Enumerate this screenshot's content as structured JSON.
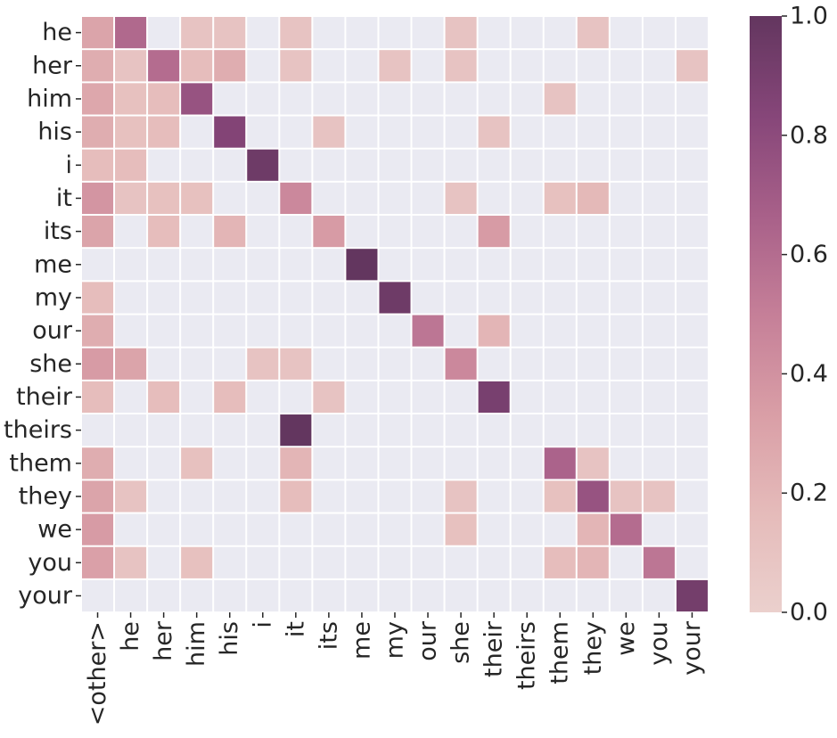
{
  "chart_data": {
    "type": "heatmap",
    "title": "",
    "xlabel": "",
    "ylabel": "",
    "y_labels": [
      "he",
      "her",
      "him",
      "his",
      "i",
      "it",
      "its",
      "me",
      "my",
      "our",
      "she",
      "their",
      "theirs",
      "them",
      "they",
      "we",
      "you",
      "your"
    ],
    "x_labels": [
      "<other>",
      "he",
      "her",
      "him",
      "his",
      "i",
      "it",
      "its",
      "me",
      "my",
      "our",
      "she",
      "their",
      "theirs",
      "them",
      "they",
      "we",
      "you",
      "your"
    ],
    "values": [
      [
        0.3,
        0.62,
        null,
        0.1,
        0.1,
        null,
        0.1,
        null,
        null,
        null,
        null,
        0.1,
        null,
        null,
        null,
        0.1,
        null,
        null,
        null
      ],
      [
        0.25,
        0.1,
        0.6,
        0.15,
        0.25,
        null,
        0.1,
        null,
        null,
        0.1,
        null,
        0.1,
        null,
        null,
        null,
        null,
        null,
        null,
        0.1
      ],
      [
        0.28,
        0.12,
        0.15,
        0.75,
        null,
        null,
        null,
        null,
        null,
        null,
        null,
        null,
        null,
        null,
        0.1,
        null,
        null,
        null,
        null
      ],
      [
        0.25,
        0.12,
        0.15,
        null,
        0.85,
        null,
        null,
        0.1,
        null,
        null,
        null,
        null,
        0.1,
        null,
        null,
        null,
        null,
        null,
        null
      ],
      [
        0.15,
        0.15,
        null,
        null,
        null,
        0.95,
        null,
        null,
        null,
        null,
        null,
        null,
        null,
        null,
        null,
        null,
        null,
        null,
        null
      ],
      [
        0.38,
        0.1,
        0.12,
        0.12,
        null,
        null,
        0.45,
        null,
        null,
        null,
        null,
        0.1,
        null,
        null,
        0.12,
        0.18,
        null,
        null,
        null
      ],
      [
        0.3,
        null,
        0.15,
        null,
        0.2,
        null,
        null,
        0.35,
        null,
        null,
        null,
        null,
        0.35,
        null,
        null,
        null,
        null,
        null,
        null
      ],
      [
        null,
        null,
        null,
        null,
        null,
        null,
        null,
        null,
        1.0,
        null,
        null,
        null,
        null,
        null,
        null,
        null,
        null,
        null,
        null
      ],
      [
        0.15,
        null,
        null,
        null,
        null,
        null,
        null,
        null,
        null,
        0.95,
        null,
        null,
        null,
        null,
        null,
        null,
        null,
        null,
        null
      ],
      [
        0.25,
        null,
        null,
        null,
        null,
        null,
        null,
        null,
        null,
        null,
        0.55,
        null,
        0.2,
        null,
        null,
        null,
        null,
        null,
        null
      ],
      [
        0.35,
        0.3,
        null,
        null,
        null,
        0.1,
        0.1,
        null,
        null,
        null,
        null,
        0.45,
        null,
        null,
        null,
        null,
        null,
        null,
        null
      ],
      [
        0.15,
        null,
        0.15,
        null,
        0.15,
        null,
        null,
        0.1,
        null,
        null,
        null,
        null,
        0.9,
        null,
        null,
        null,
        null,
        null,
        null
      ],
      [
        null,
        null,
        null,
        null,
        null,
        null,
        1.0,
        null,
        null,
        null,
        null,
        null,
        null,
        null,
        null,
        null,
        null,
        null,
        null
      ],
      [
        0.25,
        null,
        null,
        0.12,
        null,
        null,
        0.2,
        null,
        null,
        null,
        null,
        null,
        null,
        null,
        0.65,
        0.1,
        null,
        null,
        null
      ],
      [
        0.3,
        0.1,
        null,
        null,
        null,
        null,
        0.15,
        null,
        null,
        null,
        null,
        0.1,
        null,
        null,
        0.12,
        0.75,
        0.1,
        0.1,
        null
      ],
      [
        0.35,
        null,
        null,
        null,
        null,
        null,
        null,
        null,
        null,
        null,
        null,
        0.12,
        null,
        null,
        null,
        0.2,
        0.6,
        null,
        null
      ],
      [
        0.32,
        0.1,
        null,
        0.12,
        null,
        null,
        null,
        null,
        null,
        null,
        null,
        null,
        null,
        null,
        0.15,
        0.2,
        null,
        0.55,
        null
      ],
      [
        null,
        null,
        null,
        null,
        null,
        null,
        null,
        null,
        null,
        null,
        null,
        null,
        null,
        null,
        null,
        null,
        null,
        null,
        0.92
      ]
    ],
    "colorbar": {
      "range": [
        0.0,
        1.0
      ],
      "tick_values": [
        0.0,
        0.2,
        0.4,
        0.6,
        0.8,
        1.0
      ],
      "tick_labels": [
        "0.0",
        "0.2",
        "0.4",
        "0.6",
        "0.8",
        "1.0"
      ]
    },
    "colors": {
      "empty_cell": "#eaeaf2",
      "grid_line": "#ffffff",
      "scale": [
        "#ebd0cd",
        "#e5bbba",
        "#d99ea6",
        "#c57f98",
        "#a86089",
        "#864679",
        "#63365f"
      ]
    }
  }
}
